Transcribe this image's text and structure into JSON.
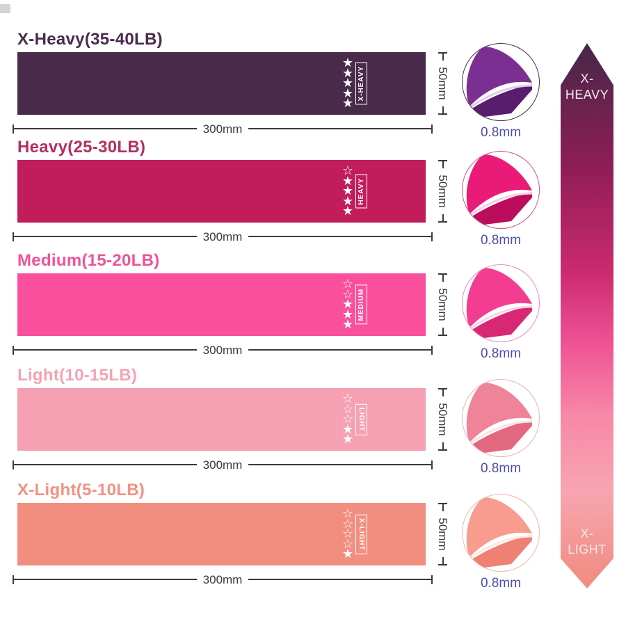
{
  "bands": [
    {
      "title": "X-Heavy(35-40LB)",
      "band_label": "X-HEAVY",
      "stars": "★\n★\n★\n★\n★",
      "length_label": "300mm",
      "height_label": "50mm",
      "thickness_label": "0.8mm",
      "colors": {
        "band": "#492a4b",
        "title": "#4a2b4c",
        "ring": "#45304a",
        "fold_main": "#7c2f92",
        "fold_dark": "#581d6d",
        "fold_light": "#e5c9ef"
      }
    },
    {
      "title": "Heavy(25-30LB)",
      "band_label": "HEAVY",
      "stars": "☆\n★\n★\n★\n★",
      "length_label": "300mm",
      "height_label": "50mm",
      "thickness_label": "0.8mm",
      "colors": {
        "band": "#c11d5b",
        "title": "#b52e60",
        "ring": "#c4597f",
        "fold_main": "#ea1a78",
        "fold_dark": "#bc0d5c",
        "fold_light": "#f9cfe3"
      }
    },
    {
      "title": "Medium(15-20LB)",
      "band_label": "MEDIUM",
      "stars": "☆\n☆\n★\n★\n★",
      "length_label": "300mm",
      "height_label": "50mm",
      "thickness_label": "0.8mm",
      "colors": {
        "band": "#fa4f9c",
        "title": "#f0539a",
        "ring": "#ec8cba",
        "fold_main": "#f33d90",
        "fold_dark": "#d82873",
        "fold_light": "#fbd4e5"
      }
    },
    {
      "title": "Light(10-15LB)",
      "band_label": "LIGHT",
      "stars": "☆\n☆\n☆\n★\n★",
      "length_label": "300mm",
      "height_label": "50mm",
      "thickness_label": "0.8mm",
      "colors": {
        "band": "#f5a1b3",
        "title": "#f4a3b5",
        "ring": "#f0afbc",
        "fold_main": "#ef8498",
        "fold_dark": "#e2687f",
        "fold_light": "#fde2e7"
      }
    },
    {
      "title": "X-Light(5-10LB)",
      "band_label": "X-LIGHT",
      "stars": "☆\n☆\n☆\n☆\n★",
      "length_label": "300mm",
      "height_label": "50mm",
      "thickness_label": "0.8mm",
      "colors": {
        "band": "#f28e80",
        "title": "#f29183",
        "ring": "#f4b5aa",
        "fold_main": "#f79c8f",
        "fold_dark": "#ee8172",
        "fold_light": "#fde9e3"
      }
    }
  ],
  "arrow": {
    "top_label": "X-\nHEAVY",
    "bottom_label": "X-\nLIGHT",
    "gradient": [
      "#462849 0%",
      "#8c1d55 22%",
      "#cc2a6f 42%",
      "#ef5294 55%",
      "#f787a8 68%",
      "#f7a5b0 82%",
      "#f18b7d 100%"
    ]
  },
  "dimension_color": "#3a3a3a",
  "thickness_color": "#4c4cae"
}
